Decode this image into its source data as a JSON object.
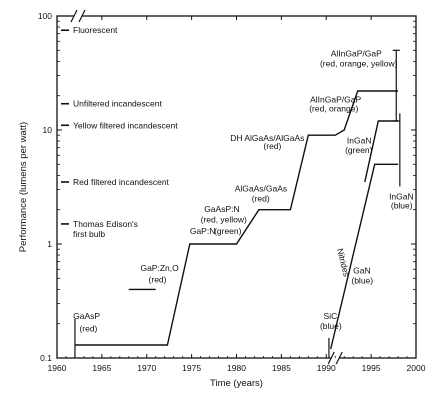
{
  "chart_data": {
    "type": "line",
    "xlabel": "Time (years)",
    "ylabel": "Performance (lumens per watt)",
    "x_scale": "linear",
    "y_scale": "log",
    "xlim": [
      1960,
      2000
    ],
    "ylim": [
      0.1,
      100
    ],
    "x_ticks": [
      "1960",
      "1965",
      "1970",
      "1975",
      "1980",
      "1985",
      "1990",
      "1995",
      "2000"
    ],
    "y_ticks": [
      "0.1",
      "1",
      "10",
      "100"
    ],
    "reference_lines": [
      {
        "label": "Fluorescent",
        "y": 75
      },
      {
        "label": "Unfiltered incandescent",
        "y": 17
      },
      {
        "label": "Yellow filtered incandescent",
        "y": 11
      },
      {
        "label": "Red filtered incandescent",
        "y": 3.5
      },
      {
        "label": "Thomas Edison's first bulb",
        "y": 1.5
      }
    ],
    "series": [
      {
        "points": [
          [
            1962,
            0.13
          ],
          [
            1972.3,
            0.13
          ],
          [
            1974.8,
            1.0
          ],
          [
            1980,
            1.0
          ],
          [
            1982.5,
            2.0
          ],
          [
            1986,
            2.0
          ],
          [
            1988,
            9.0
          ],
          [
            1991,
            9.0
          ],
          [
            1992,
            10
          ],
          [
            1993.5,
            22
          ],
          [
            1998,
            22
          ]
        ]
      },
      {
        "points": [
          [
            1968,
            0.4
          ],
          [
            1971,
            0.4
          ]
        ]
      },
      {
        "points": [
          [
            1990.5,
            0.12
          ],
          [
            1995.4,
            5.0
          ],
          [
            1998,
            5.0
          ]
        ]
      },
      {
        "points": [
          [
            1994.3,
            3.5
          ],
          [
            1995.8,
            12
          ],
          [
            1998,
            12
          ]
        ]
      }
    ],
    "annotations": [
      {
        "text": "GaAsP",
        "x": 1961.8,
        "y": 0.22
      },
      {
        "text": "(red)",
        "x": 1962.5,
        "y": 0.17
      },
      {
        "text": "GaP:Zn,O",
        "x": 1969.3,
        "y": 0.58
      },
      {
        "text": "(red)",
        "x": 1970.2,
        "y": 0.46
      },
      {
        "text": "GaAsP:N",
        "x": 1976.4,
        "y": 1.9
      },
      {
        "text": "(red, yellow)",
        "x": 1976.0,
        "y": 1.55
      },
      {
        "text": "GaP:N",
        "x": 1974.8,
        "y": 1.22
      },
      {
        "text": "(green)",
        "x": 1977.5,
        "y": 1.22
      },
      {
        "text": "AlGaAs/GaAs",
        "x": 1979.8,
        "y": 2.9
      },
      {
        "text": "(red)",
        "x": 1981.7,
        "y": 2.35
      },
      {
        "text": "DH AlGaAs/AlGaAs",
        "x": 1979.3,
        "y": 8.0
      },
      {
        "text": "(red)",
        "x": 1983.0,
        "y": 6.8
      },
      {
        "text": "AlInGaP/GaP",
        "x": 1988.2,
        "y": 17.5
      },
      {
        "text": "(red, orange)",
        "x": 1988.1,
        "y": 14.5
      },
      {
        "text": "AlInGaP/GaP",
        "x": 1990.5,
        "y": 44
      },
      {
        "text": "(red, orange, yellow)",
        "x": 1989.3,
        "y": 36
      },
      {
        "text": "InGaN",
        "x": 1992.3,
        "y": 7.6
      },
      {
        "text": "(green)",
        "x": 1992.1,
        "y": 6.3
      },
      {
        "text": "InGaN",
        "x": 1997.0,
        "y": 2.45
      },
      {
        "text": "(blue)",
        "x": 1997.2,
        "y": 2.05
      },
      {
        "text": "GaN",
        "x": 1993.0,
        "y": 0.55
      },
      {
        "text": "(blue)",
        "x": 1992.8,
        "y": 0.45
      },
      {
        "text": "SiC",
        "x": 1989.7,
        "y": 0.22
      },
      {
        "text": "(blue)",
        "x": 1989.3,
        "y": 0.18
      },
      {
        "text": "Nitrides",
        "x": 1991.2,
        "y": 0.9
      }
    ],
    "grid": false,
    "legend": "none"
  }
}
